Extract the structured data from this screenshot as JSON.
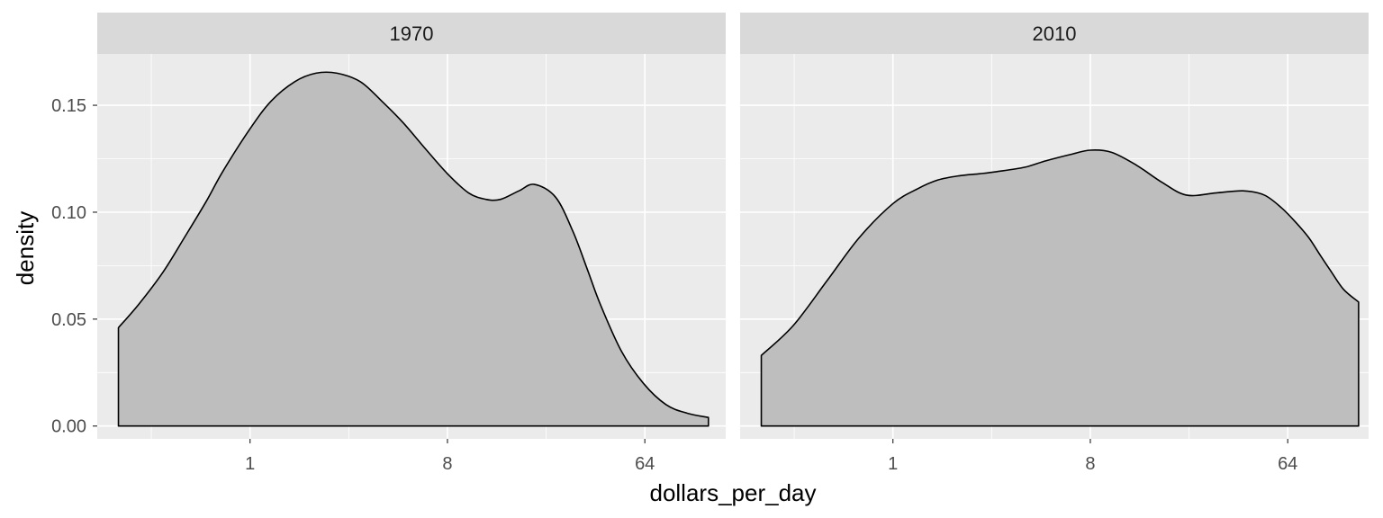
{
  "chart_data": {
    "type": "area",
    "subtype": "density",
    "xlabel": "dollars_per_day",
    "ylabel": "density",
    "x_scale": "log2",
    "x_ticks": [
      1,
      8,
      64
    ],
    "x_tick_labels": [
      "1",
      "8",
      "64"
    ],
    "xlim": [
      0.2,
      150
    ],
    "y_ticks": [
      0,
      0.05,
      0.1,
      0.15
    ],
    "y_tick_labels": [
      "0.00",
      "0.05",
      "0.10",
      "0.15"
    ],
    "ylim": [
      -0.006,
      0.174
    ],
    "grid": true,
    "facets": [
      {
        "label": "1970",
        "x": [
          0.25,
          0.31,
          0.4,
          0.5,
          0.63,
          0.75,
          1,
          1.25,
          1.6,
          2,
          2.5,
          3.2,
          4,
          5,
          6.3,
          8,
          10,
          12,
          14,
          17,
          20,
          25,
          30,
          35,
          40,
          50,
          63,
          80,
          100,
          125
        ],
        "y": [
          0.046,
          0.057,
          0.072,
          0.088,
          0.105,
          0.119,
          0.139,
          0.152,
          0.161,
          0.165,
          0.165,
          0.161,
          0.152,
          0.142,
          0.13,
          0.118,
          0.109,
          0.106,
          0.106,
          0.11,
          0.113,
          0.107,
          0.091,
          0.073,
          0.057,
          0.035,
          0.02,
          0.01,
          0.006,
          0.004
        ]
      },
      {
        "label": "2010",
        "x": [
          0.25,
          0.35,
          0.5,
          0.7,
          1,
          1.3,
          1.6,
          2,
          2.5,
          3,
          4,
          5,
          6.5,
          8,
          10,
          13,
          17,
          22,
          30,
          40,
          50,
          60,
          70,
          80,
          90,
          100,
          115,
          135
        ],
        "y": [
          0.033,
          0.047,
          0.068,
          0.088,
          0.104,
          0.111,
          0.115,
          0.117,
          0.118,
          0.119,
          0.121,
          0.124,
          0.127,
          0.129,
          0.128,
          0.122,
          0.114,
          0.108,
          0.109,
          0.11,
          0.108,
          0.102,
          0.095,
          0.088,
          0.08,
          0.073,
          0.064,
          0.058
        ]
      }
    ],
    "colors": {
      "panel": "#ebebeb",
      "strip": "#d9d9d9",
      "grid": "#ffffff",
      "fill": "#bebebe",
      "outline": "#000000",
      "tick": "#333333"
    }
  }
}
